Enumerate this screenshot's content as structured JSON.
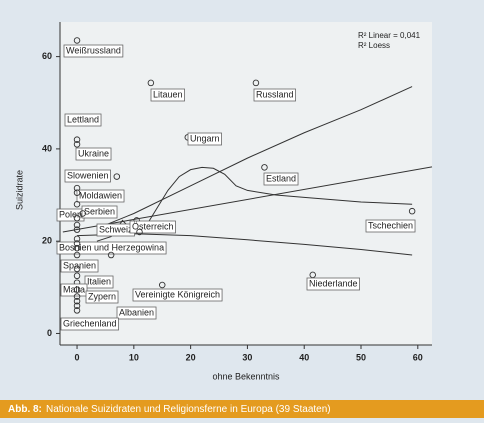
{
  "chart_data": {
    "type": "scatter",
    "x_label": "ohne Bekenntnis",
    "y_label": "Suizidrate",
    "xlim": [
      -3,
      62.5
    ],
    "ylim": [
      -2.5,
      67.5
    ],
    "xticks": [
      0,
      10,
      20,
      30,
      40,
      50,
      60
    ],
    "yticks": [
      0,
      20,
      40,
      60
    ],
    "annotations": [
      "R² Linear = 0,041",
      "R² Loess"
    ],
    "points": {
      "x": [
        0,
        13,
        31.5,
        0,
        0,
        19.5,
        33,
        7,
        0,
        0,
        2,
        8,
        10.5,
        59,
        0,
        0,
        0,
        0,
        0,
        15,
        0,
        41.5,
        0,
        0,
        0,
        0,
        0,
        0,
        0,
        0,
        0,
        0,
        6,
        1,
        11
      ],
      "values": [
        63.5,
        54.3,
        54.3,
        42,
        41,
        42.5,
        36,
        34,
        31.5,
        28,
        27,
        22,
        24.5,
        26.5,
        20.5,
        17,
        12.5,
        11,
        8,
        10.5,
        6,
        12.7,
        5,
        30.5,
        25,
        23.5,
        22.5,
        19.5,
        18.5,
        14,
        9.5,
        7,
        17,
        26,
        22
      ],
      "labels": [
        "Weißrussland",
        "Litauen",
        "Russland",
        "Lettland",
        "Ukraine",
        "Ungarn",
        "Estland",
        "Slowenien",
        "Moldawien",
        "Polen",
        "Serbien",
        "Schweiz",
        "Österreich",
        "Tschechien",
        "Bosnien und Herzegowina",
        "Spanien",
        "Italien",
        "Malta",
        "Zypern",
        "Vereinigte Königreich",
        "Albanien",
        "Niederlande",
        "Griechenland",
        null,
        null,
        null,
        null,
        null,
        null,
        null,
        null,
        null,
        null,
        null,
        null
      ],
      "color": "#333333"
    },
    "lines": [
      {
        "x": [
          -2.5,
          62.5
        ],
        "values": [
          22,
          36.1
        ]
      },
      {
        "x": [
          4,
          10,
          20,
          30,
          40,
          50,
          59
        ],
        "values": [
          23,
          26,
          32,
          38,
          43.5,
          48.5,
          53.5
        ]
      },
      {
        "x": [
          0,
          10,
          20,
          30,
          40,
          50,
          59
        ],
        "values": [
          21.2,
          21.6,
          21.2,
          20.3,
          19.3,
          18.2,
          17
        ]
      },
      {
        "x": [
          3.5,
          6,
          8,
          10,
          12,
          14,
          16,
          18,
          20,
          22,
          24,
          26,
          28,
          30,
          35,
          40,
          50,
          59
        ],
        "values": [
          20,
          21,
          24.5,
          22,
          23,
          27,
          31,
          34,
          35.5,
          36,
          35.8,
          34.5,
          32,
          31,
          30,
          29.5,
          28.5,
          28
        ]
      }
    ],
    "line_color": "#333333"
  },
  "caption": {
    "label": "Abb. 8:",
    "text": "Nationale Suizidraten und Religionsferne in Europa (39 Staaten)"
  }
}
